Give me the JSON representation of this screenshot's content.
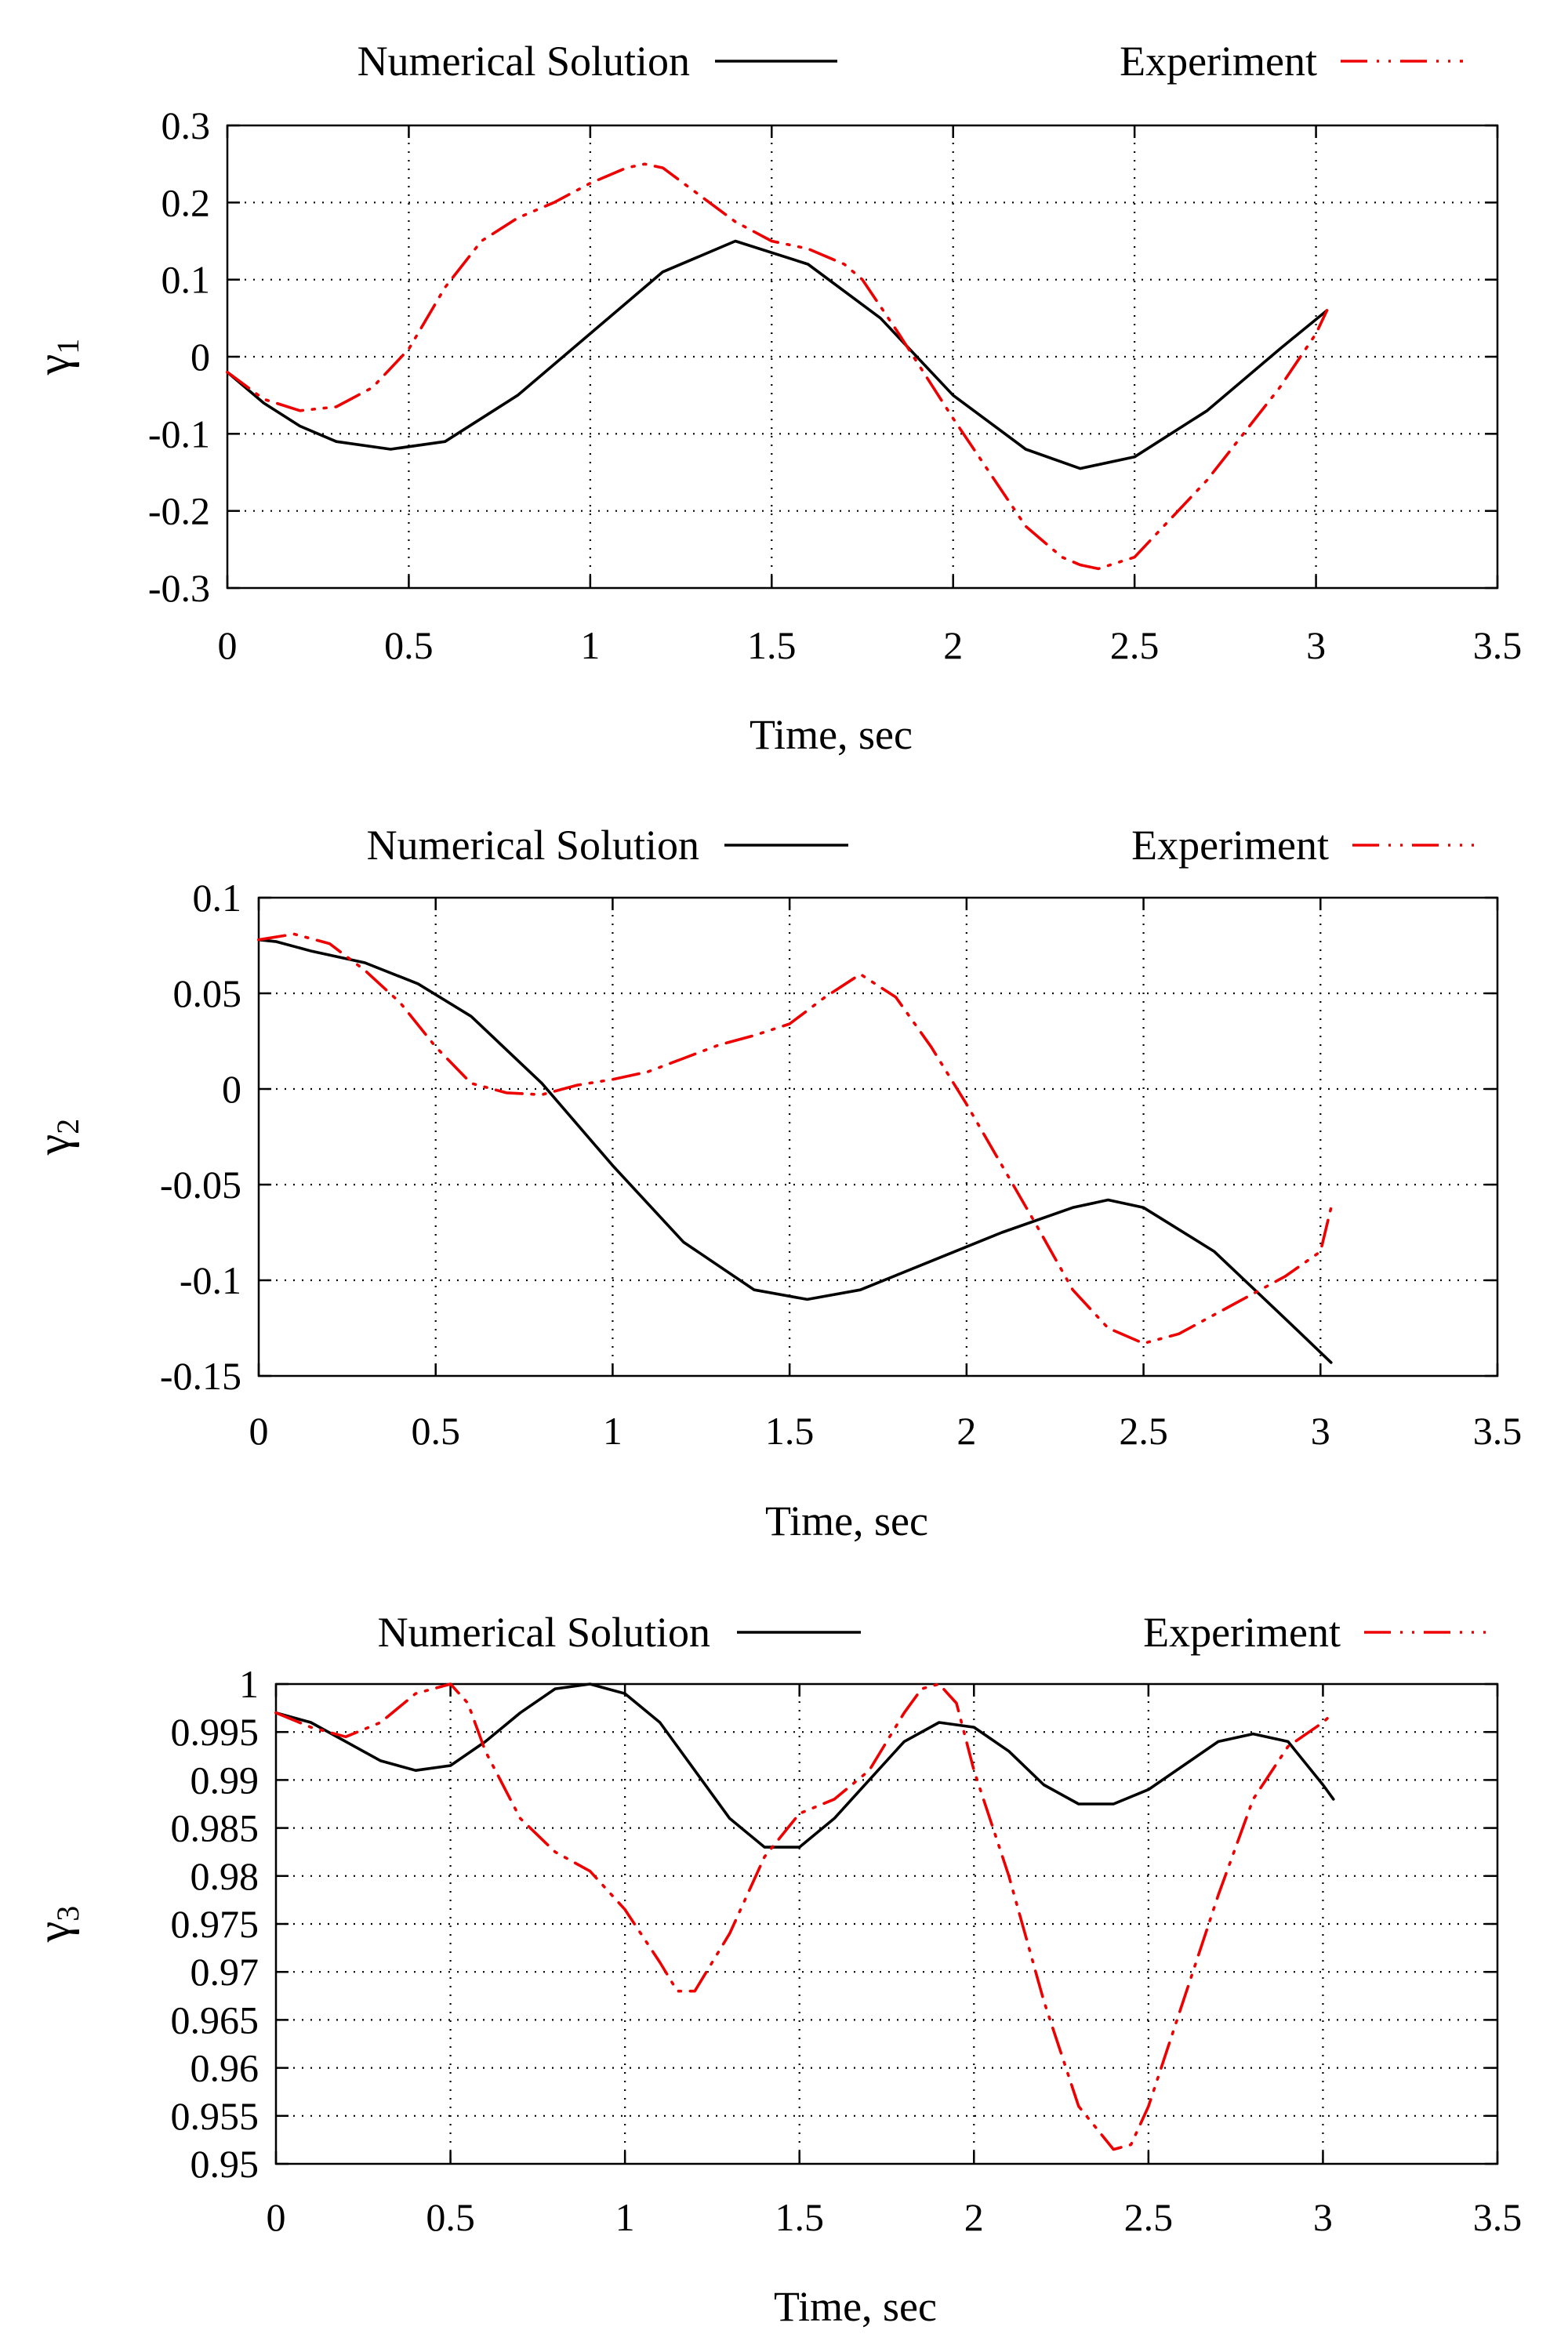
{
  "chart_data": [
    {
      "type": "line",
      "xlabel": "Time, sec",
      "ylabel": "γ",
      "ylabel_sub": "1",
      "xlim": [
        0,
        3.5
      ],
      "ylim": [
        -0.3,
        0.3
      ],
      "xticks": [
        0,
        0.5,
        1,
        1.5,
        2,
        2.5,
        3,
        3.5
      ],
      "xtick_labels": [
        "0",
        "0.5",
        "1",
        "1.5",
        "2",
        "2.5",
        "3",
        "3.5"
      ],
      "yticks": [
        -0.3,
        -0.2,
        -0.1,
        0,
        0.1,
        0.2,
        0.3
      ],
      "ytick_labels": [
        "-0.3",
        "-0.2",
        "-0.1",
        "0",
        "0.1",
        "0.2",
        "0.3"
      ],
      "grid": true,
      "legend_position": "top",
      "series": [
        {
          "name": "Numerical Solution",
          "color": "#000000",
          "style": "solid",
          "x": [
            0,
            0.1,
            0.2,
            0.3,
            0.45,
            0.6,
            0.8,
            1.0,
            1.2,
            1.4,
            1.6,
            1.8,
            2.0,
            2.2,
            2.35,
            2.5,
            2.7,
            2.9,
            3.03
          ],
          "y": [
            -0.02,
            -0.06,
            -0.09,
            -0.11,
            -0.12,
            -0.11,
            -0.05,
            0.03,
            0.11,
            0.15,
            0.12,
            0.05,
            -0.05,
            -0.12,
            -0.145,
            -0.13,
            -0.07,
            0.01,
            0.06
          ]
        },
        {
          "name": "Experiment",
          "color": "#ee0000",
          "style": "dash-dot-dot",
          "x": [
            0,
            0.1,
            0.2,
            0.3,
            0.4,
            0.5,
            0.6,
            0.7,
            0.8,
            0.9,
            1.0,
            1.1,
            1.15,
            1.2,
            1.3,
            1.4,
            1.5,
            1.6,
            1.7,
            1.75,
            1.85,
            2.0,
            2.1,
            2.2,
            2.3,
            2.35,
            2.4,
            2.5,
            2.6,
            2.7,
            2.8,
            2.9,
            3.0,
            3.03
          ],
          "y": [
            -0.02,
            -0.055,
            -0.07,
            -0.065,
            -0.04,
            0.01,
            0.09,
            0.15,
            0.18,
            0.2,
            0.225,
            0.245,
            0.25,
            0.245,
            0.21,
            0.175,
            0.15,
            0.14,
            0.12,
            0.1,
            0.03,
            -0.08,
            -0.15,
            -0.22,
            -0.26,
            -0.27,
            -0.275,
            -0.26,
            -0.21,
            -0.16,
            -0.1,
            -0.04,
            0.03,
            0.06
          ]
        }
      ]
    },
    {
      "type": "line",
      "xlabel": "Time, sec",
      "ylabel": "γ",
      "ylabel_sub": "2",
      "xlim": [
        0,
        3.5
      ],
      "ylim": [
        -0.15,
        0.1
      ],
      "xticks": [
        0,
        0.5,
        1,
        1.5,
        2,
        2.5,
        3,
        3.5
      ],
      "xtick_labels": [
        "0",
        "0.5",
        "1",
        "1.5",
        "2",
        "2.5",
        "3",
        "3.5"
      ],
      "yticks": [
        -0.15,
        -0.1,
        -0.05,
        0,
        0.05,
        0.1
      ],
      "ytick_labels": [
        "-0.15",
        "-0.1",
        "-0.05",
        "0",
        "0.05",
        "0.1"
      ],
      "grid": true,
      "legend_position": "top",
      "series": [
        {
          "name": "Numerical Solution",
          "color": "#000000",
          "style": "solid",
          "x": [
            0,
            0.05,
            0.15,
            0.3,
            0.45,
            0.6,
            0.8,
            1.0,
            1.2,
            1.4,
            1.55,
            1.7,
            1.9,
            2.1,
            2.3,
            2.4,
            2.5,
            2.7,
            2.9,
            3.03
          ],
          "y": [
            0.078,
            0.077,
            0.072,
            0.066,
            0.055,
            0.038,
            0.003,
            -0.04,
            -0.08,
            -0.105,
            -0.11,
            -0.105,
            -0.09,
            -0.075,
            -0.062,
            -0.058,
            -0.062,
            -0.085,
            -0.12,
            -0.143
          ]
        },
        {
          "name": "Experiment",
          "color": "#ee0000",
          "style": "dash-dot-dot",
          "x": [
            0,
            0.1,
            0.2,
            0.3,
            0.4,
            0.5,
            0.6,
            0.7,
            0.8,
            0.9,
            1.0,
            1.1,
            1.2,
            1.3,
            1.4,
            1.5,
            1.6,
            1.7,
            1.8,
            1.9,
            2.0,
            2.1,
            2.2,
            2.3,
            2.4,
            2.5,
            2.6,
            2.7,
            2.8,
            2.9,
            3.0,
            3.03
          ],
          "y": [
            0.078,
            0.081,
            0.076,
            0.062,
            0.045,
            0.022,
            0.003,
            -0.002,
            -0.003,
            0.002,
            0.005,
            0.009,
            0.016,
            0.023,
            0.028,
            0.034,
            0.048,
            0.06,
            0.048,
            0.022,
            -0.008,
            -0.04,
            -0.072,
            -0.105,
            -0.125,
            -0.133,
            -0.128,
            -0.118,
            -0.108,
            -0.098,
            -0.085,
            -0.062
          ]
        }
      ]
    },
    {
      "type": "line",
      "xlabel": "Time, sec",
      "ylabel": "γ",
      "ylabel_sub": "3",
      "xlim": [
        0,
        3.5
      ],
      "ylim": [
        0.95,
        1
      ],
      "xticks": [
        0,
        0.5,
        1,
        1.5,
        2,
        2.5,
        3,
        3.5
      ],
      "xtick_labels": [
        "0",
        "0.5",
        "1",
        "1.5",
        "2",
        "2.5",
        "3",
        "3.5"
      ],
      "yticks": [
        0.95,
        0.955,
        0.96,
        0.965,
        0.97,
        0.975,
        0.98,
        0.985,
        0.99,
        0.995,
        1
      ],
      "ytick_labels": [
        "0.95",
        "0.955",
        "0.96",
        "0.965",
        "0.97",
        "0.975",
        "0.98",
        "0.985",
        "0.99",
        "0.995",
        "1"
      ],
      "grid": true,
      "legend_position": "top",
      "series": [
        {
          "name": "Numerical Solution",
          "color": "#000000",
          "style": "solid",
          "x": [
            0,
            0.1,
            0.2,
            0.3,
            0.4,
            0.5,
            0.6,
            0.7,
            0.8,
            0.9,
            1.0,
            1.1,
            1.2,
            1.3,
            1.4,
            1.5,
            1.6,
            1.7,
            1.8,
            1.9,
            2.0,
            2.1,
            2.2,
            2.3,
            2.4,
            2.5,
            2.6,
            2.7,
            2.8,
            2.9,
            3.0,
            3.03
          ],
          "y": [
            0.997,
            0.996,
            0.994,
            0.992,
            0.991,
            0.9915,
            0.994,
            0.997,
            0.9995,
            1.0,
            0.999,
            0.996,
            0.991,
            0.986,
            0.983,
            0.983,
            0.986,
            0.99,
            0.994,
            0.996,
            0.9955,
            0.993,
            0.9895,
            0.9875,
            0.9875,
            0.989,
            0.9915,
            0.994,
            0.9948,
            0.994,
            0.9895,
            0.988
          ]
        },
        {
          "name": "Experiment",
          "color": "#ee0000",
          "style": "dash-dot-dot",
          "x": [
            0,
            0.1,
            0.2,
            0.3,
            0.4,
            0.5,
            0.55,
            0.6,
            0.7,
            0.8,
            0.9,
            1.0,
            1.1,
            1.15,
            1.2,
            1.3,
            1.4,
            1.5,
            1.6,
            1.7,
            1.8,
            1.85,
            1.9,
            1.95,
            2.0,
            2.1,
            2.2,
            2.3,
            2.4,
            2.45,
            2.5,
            2.6,
            2.7,
            2.8,
            2.9,
            3.0,
            3.03
          ],
          "y": [
            0.997,
            0.9955,
            0.9945,
            0.996,
            0.999,
            1.0,
            0.998,
            0.993,
            0.986,
            0.9825,
            0.9805,
            0.9765,
            0.971,
            0.968,
            0.968,
            0.974,
            0.982,
            0.9865,
            0.988,
            0.991,
            0.997,
            0.9995,
            1.0,
            0.998,
            0.991,
            0.98,
            0.967,
            0.956,
            0.9515,
            0.952,
            0.956,
            0.967,
            0.978,
            0.988,
            0.9935,
            0.996,
            0.997
          ]
        }
      ]
    }
  ]
}
